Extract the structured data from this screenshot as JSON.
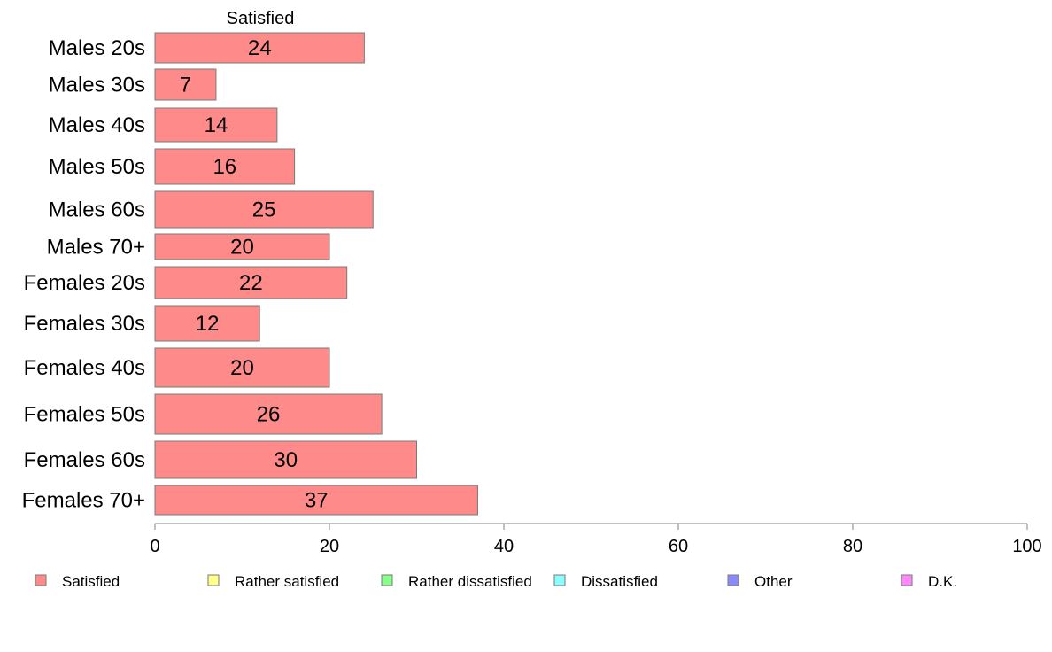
{
  "chart_data": {
    "type": "bar",
    "orientation": "horizontal",
    "stacked": true,
    "column_header": "Satisfied",
    "categories": [
      "Males 20s",
      "Males 30s",
      "Males 40s",
      "Males 50s",
      "Males 60s",
      "Males 70+",
      "Females 20s",
      "Females 30s",
      "Females 40s",
      "Females 50s",
      "Females 60s",
      "Females 70+"
    ],
    "series": [
      {
        "name": "Satisfied",
        "values": [
          24,
          7,
          14,
          16,
          25,
          20,
          22,
          12,
          20,
          26,
          30,
          37
        ]
      }
    ],
    "legend": [
      {
        "name": "Satisfied",
        "color": "#ff8a8a"
      },
      {
        "name": "Rather satisfied",
        "color": "#ffff8a"
      },
      {
        "name": "Rather dissatisfied",
        "color": "#8aff8a"
      },
      {
        "name": "Dissatisfied",
        "color": "#8affff"
      },
      {
        "name": "Other",
        "color": "#8a8aff"
      },
      {
        "name": "D.K.",
        "color": "#ff8aff"
      }
    ],
    "legend_position": "bottom",
    "xlim": [
      0,
      100
    ],
    "xticks": [
      0,
      20,
      40,
      60,
      80,
      100
    ],
    "xlabel": "",
    "ylabel": "",
    "grid": false
  }
}
